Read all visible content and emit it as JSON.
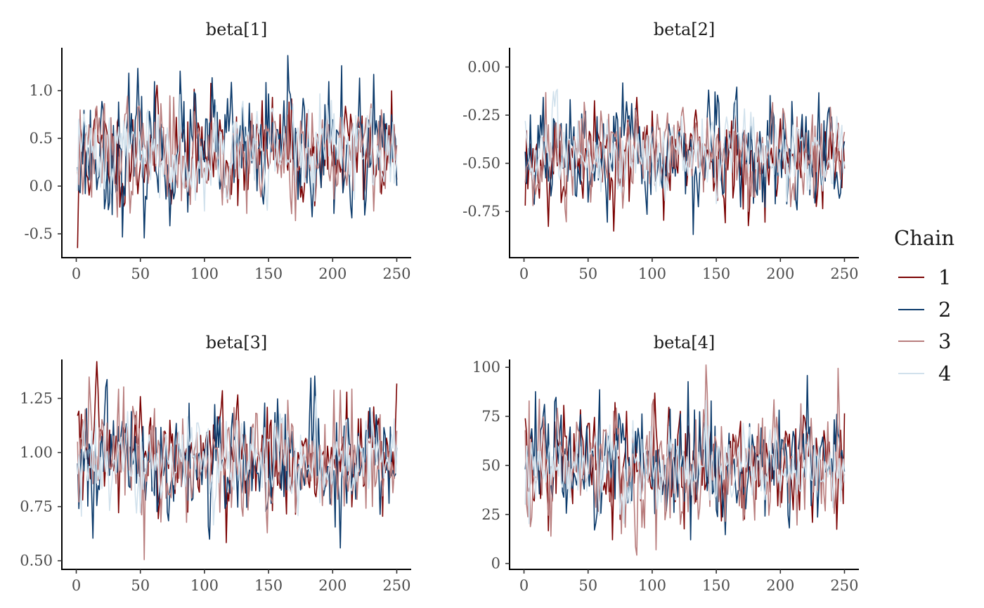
{
  "chart_data": [
    {
      "type": "line",
      "title": "beta[1]",
      "xlim": [
        0,
        250
      ],
      "ylim": [
        -0.75,
        1.45
      ],
      "xticks": [
        0,
        50,
        100,
        150,
        200,
        250
      ],
      "yticks": [
        -0.5,
        0.0,
        0.5,
        1.0
      ],
      "ytick_labels": [
        "-0.5",
        "0.0",
        "0.5",
        "1.0"
      ],
      "n_iter": 250,
      "series": [
        {
          "name": "1",
          "center": 0.35,
          "sd": 0.27,
          "start": -0.65,
          "seed": 11
        },
        {
          "name": "2",
          "center": 0.35,
          "sd": 0.33,
          "start": 0.2,
          "seed": 23
        },
        {
          "name": "3",
          "center": 0.35,
          "sd": 0.27,
          "start": 0.15,
          "seed": 37
        },
        {
          "name": "4",
          "center": 0.38,
          "sd": 0.24,
          "start": -0.05,
          "seed": 41
        }
      ]
    },
    {
      "type": "line",
      "title": "beta[2]",
      "xlim": [
        0,
        250
      ],
      "ylim": [
        -0.99,
        0.1
      ],
      "xticks": [
        0,
        50,
        100,
        150,
        200,
        250
      ],
      "yticks": [
        -0.75,
        -0.5,
        -0.25,
        0.0
      ],
      "ytick_labels": [
        "-0.75",
        "-0.50",
        "-0.25",
        "0.00"
      ],
      "n_iter": 250,
      "series": [
        {
          "name": "1",
          "center": -0.47,
          "sd": 0.13,
          "start": -0.72,
          "seed": 53
        },
        {
          "name": "2",
          "center": -0.47,
          "sd": 0.14,
          "start": -0.44,
          "seed": 67
        },
        {
          "name": "3",
          "center": -0.45,
          "sd": 0.13,
          "start": -0.6,
          "seed": 71
        },
        {
          "name": "4",
          "center": -0.45,
          "sd": 0.1,
          "start": -0.28,
          "seed": 83
        }
      ]
    },
    {
      "type": "line",
      "title": "beta[3]",
      "xlim": [
        0,
        250
      ],
      "ylim": [
        0.46,
        1.43
      ],
      "xticks": [
        0,
        50,
        100,
        150,
        200,
        250
      ],
      "yticks": [
        0.5,
        0.75,
        1.0,
        1.25
      ],
      "ytick_labels": [
        "0.50",
        "0.75",
        "1.00",
        "1.25"
      ],
      "n_iter": 250,
      "series": [
        {
          "name": "1",
          "center": 0.97,
          "sd": 0.13,
          "start": 1.17,
          "seed": 97
        },
        {
          "name": "2",
          "center": 0.95,
          "sd": 0.14,
          "start": 0.95,
          "seed": 101
        },
        {
          "name": "3",
          "center": 0.96,
          "sd": 0.13,
          "start": 1.05,
          "seed": 113
        },
        {
          "name": "4",
          "center": 0.95,
          "sd": 0.1,
          "start": 0.9,
          "seed": 127
        }
      ]
    },
    {
      "type": "line",
      "title": "beta[4]",
      "xlim": [
        0,
        250
      ],
      "ylim": [
        -3,
        104
      ],
      "xticks": [
        0,
        50,
        100,
        150,
        200,
        250
      ],
      "yticks": [
        0,
        25,
        50,
        75,
        100
      ],
      "ytick_labels": [
        "0",
        "25",
        "50",
        "75",
        "100"
      ],
      "n_iter": 250,
      "series": [
        {
          "name": "1",
          "center": 50,
          "sd": 14,
          "start": 74,
          "seed": 131
        },
        {
          "name": "2",
          "center": 50,
          "sd": 15,
          "start": 48,
          "seed": 149
        },
        {
          "name": "3",
          "center": 48,
          "sd": 14,
          "start": 68,
          "seed": 157
        },
        {
          "name": "4",
          "center": 49,
          "sd": 10,
          "start": 30,
          "seed": 163
        }
      ]
    }
  ],
  "legend": {
    "title": "Chain",
    "items": [
      {
        "label": "1",
        "color": "#7a0000"
      },
      {
        "label": "2",
        "color": "#0b3a6b"
      },
      {
        "label": "3",
        "color": "#b87d7d"
      },
      {
        "label": "4",
        "color": "#d1e1ec"
      }
    ]
  }
}
